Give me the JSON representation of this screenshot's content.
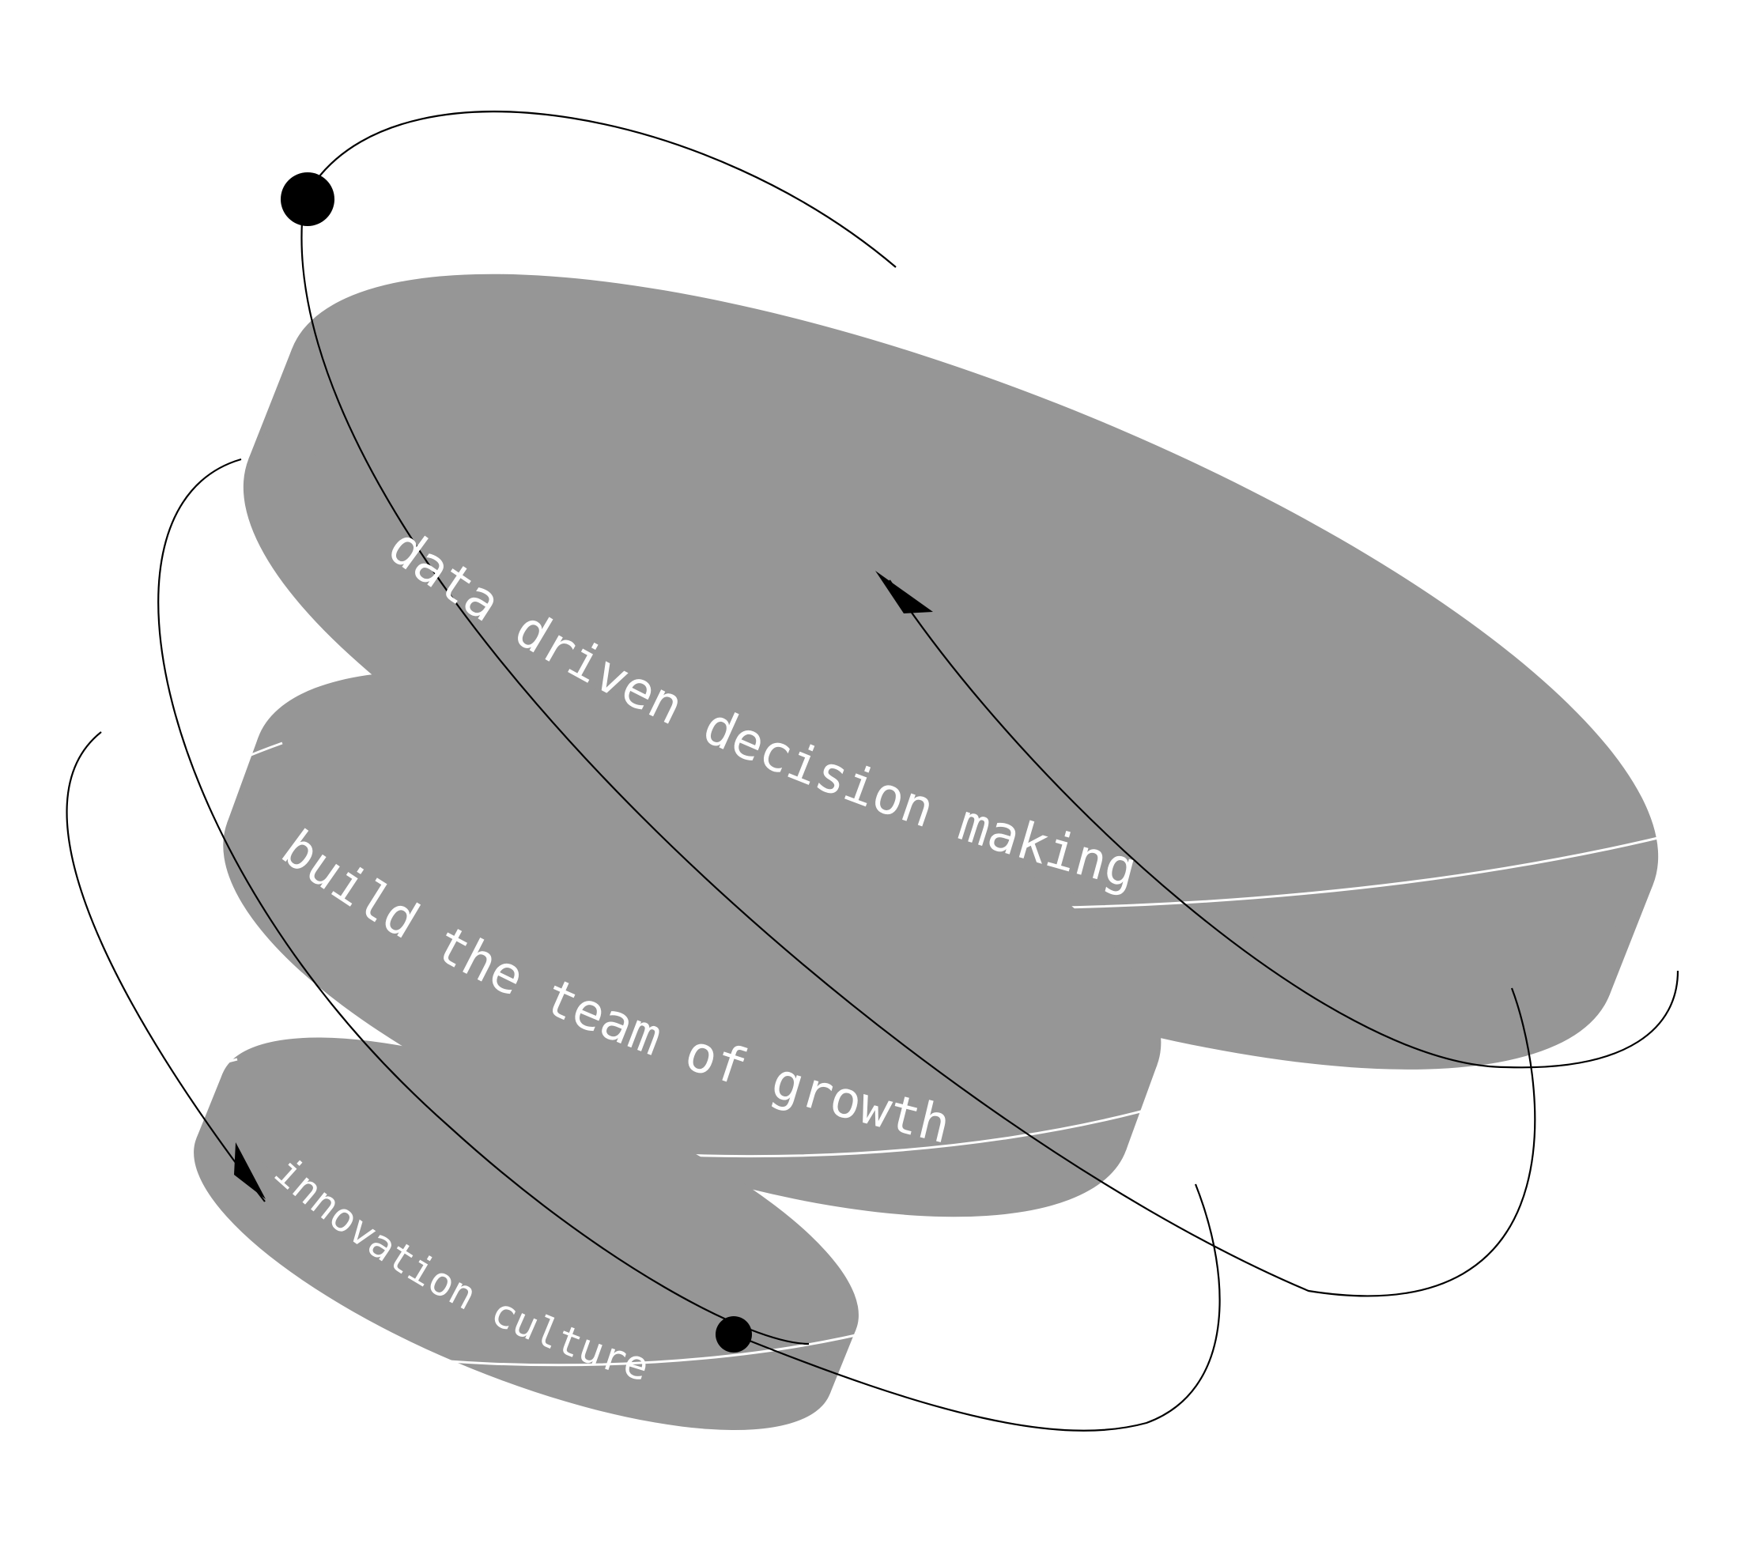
{
  "colors": {
    "background": "#ffffff",
    "disk": "#969696",
    "disk_rim": "#ffffff",
    "orbit": "#000000",
    "label": "#ffffff"
  },
  "layers": [
    {
      "id": "top",
      "label": "data driven decision making"
    },
    {
      "id": "middle",
      "label": "build the team of growth"
    },
    {
      "id": "bottom",
      "label": "innovation culture"
    }
  ]
}
